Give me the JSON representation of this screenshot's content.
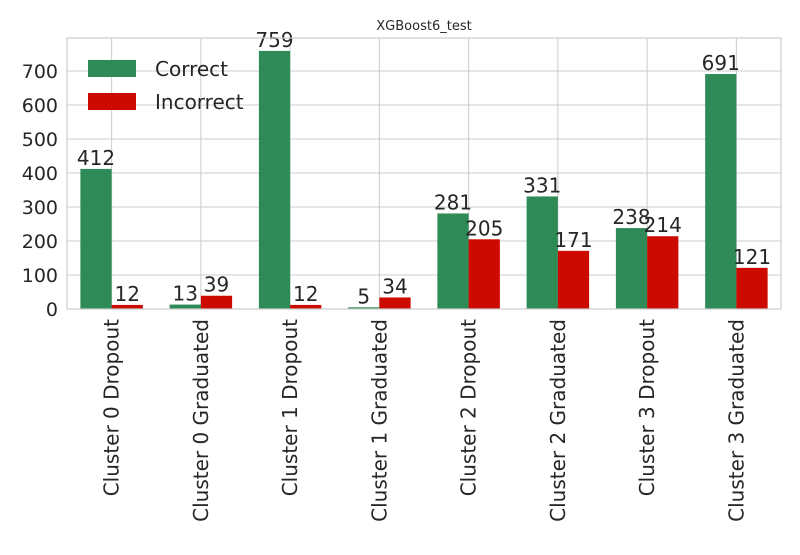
{
  "chart_data": {
    "type": "bar",
    "title": "XGBoost6_test",
    "xlabel": "",
    "ylabel": "",
    "categories": [
      "Cluster 0 Dropout",
      "Cluster 0 Graduated",
      "Cluster 1 Dropout",
      "Cluster 1 Graduated",
      "Cluster 2 Dropout",
      "Cluster 2 Graduated",
      "Cluster 3 Dropout",
      "Cluster 3 Graduated"
    ],
    "series": [
      {
        "name": "Correct",
        "color": "#2e8b57",
        "values": [
          412,
          13,
          759,
          5,
          281,
          331,
          238,
          691
        ]
      },
      {
        "name": "Incorrect",
        "color": "#cc0a00",
        "values": [
          12,
          39,
          12,
          34,
          205,
          171,
          214,
          121
        ]
      }
    ],
    "ylim": [
      0,
      797
    ],
    "yticks": [
      0,
      100,
      200,
      300,
      400,
      500,
      600,
      700
    ],
    "grid": true,
    "legend_position": "upper-left"
  }
}
